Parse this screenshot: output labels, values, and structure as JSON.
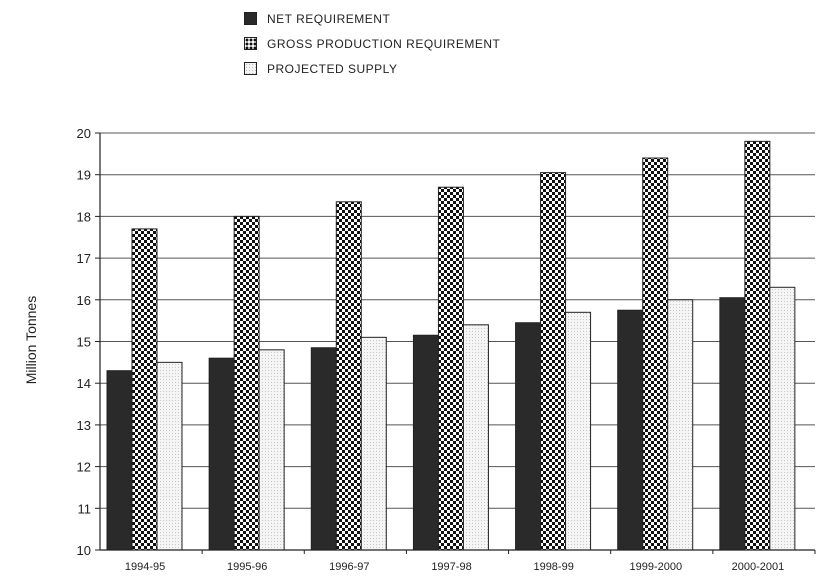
{
  "chart_data": {
    "type": "bar",
    "categories": [
      "1994-95",
      "1995-96",
      "1996-97",
      "1997-98",
      "1998-99",
      "1999-2000",
      "2000-2001"
    ],
    "series": [
      {
        "name": "NET REQUIREMENT",
        "values": [
          14.3,
          14.6,
          14.85,
          15.15,
          15.45,
          15.75,
          16.05
        ]
      },
      {
        "name": "GROSS PRODUCTION REQUIREMENT",
        "values": [
          17.7,
          18.0,
          18.35,
          18.7,
          19.05,
          19.4,
          19.8
        ]
      },
      {
        "name": "PROJECTED SUPPLY",
        "values": [
          14.5,
          14.8,
          15.1,
          15.4,
          15.7,
          16.0,
          16.3
        ]
      }
    ],
    "ylabel": "Million Tonnes",
    "xlabel": "",
    "ylim": [
      10,
      20
    ],
    "yticks": [
      10,
      11,
      12,
      13,
      14,
      15,
      16,
      17,
      18,
      19,
      20
    ],
    "grid": true,
    "legend_position": "top",
    "colors": {
      "net": "#2a2a2a",
      "gross": "#111111",
      "supply": "#f4f4f4"
    }
  }
}
